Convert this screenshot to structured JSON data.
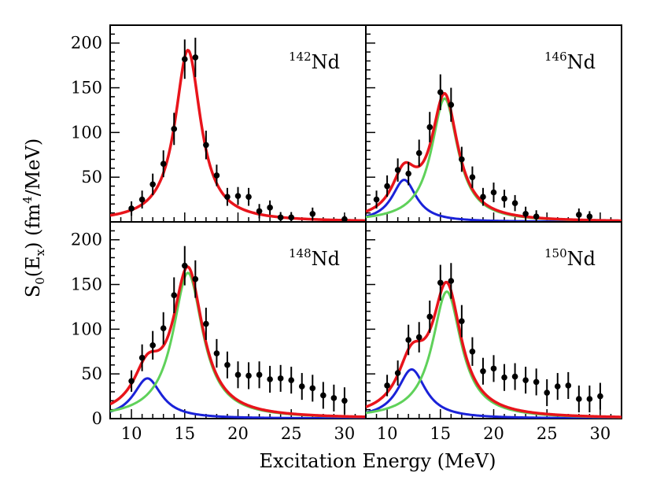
{
  "chart_data": {
    "type": "scatter",
    "xlabel": "Excitation Energy (MeV)",
    "ylabel": "S0(Ex) (fm4/MeV)",
    "ylabel_parts": {
      "s": "S",
      "s_sub": "0",
      "e": "(E",
      "e_sub": "x",
      "unit": ") (fm",
      "unit_sup": "4",
      "unit_end": "/MeV)"
    },
    "xlim": [
      8,
      32
    ],
    "ylim": [
      0,
      220
    ],
    "x_ticks": [
      10,
      15,
      20,
      25,
      30
    ],
    "y_ticks": [
      50,
      100,
      150,
      200
    ],
    "x_tick_labels": [
      "10",
      "15",
      "20",
      "25",
      "30"
    ],
    "y_tick_labels": [
      "0",
      "50",
      "100",
      "150",
      "200"
    ],
    "colors": {
      "total": "#e8141b",
      "low": "#1a22d8",
      "main": "#5fd15a",
      "data": "#000000"
    },
    "panels": [
      {
        "nucleus": "142Nd",
        "mass": "142",
        "element": "Nd",
        "points": [
          {
            "x": 10,
            "y": 15,
            "err": 8
          },
          {
            "x": 11,
            "y": 25,
            "err": 10
          },
          {
            "x": 12,
            "y": 42,
            "err": 12
          },
          {
            "x": 13,
            "y": 65,
            "err": 15
          },
          {
            "x": 14,
            "y": 104,
            "err": 18
          },
          {
            "x": 15,
            "y": 182,
            "err": 22
          },
          {
            "x": 16,
            "y": 184,
            "err": 22
          },
          {
            "x": 17,
            "y": 86,
            "err": 16
          },
          {
            "x": 18,
            "y": 52,
            "err": 12
          },
          {
            "x": 19,
            "y": 28,
            "err": 10
          },
          {
            "x": 20,
            "y": 29,
            "err": 10
          },
          {
            "x": 21,
            "y": 28,
            "err": 10
          },
          {
            "x": 22,
            "y": 12,
            "err": 8
          },
          {
            "x": 23,
            "y": 16,
            "err": 8
          },
          {
            "x": 24,
            "y": 5,
            "err": 6
          },
          {
            "x": 25,
            "y": 5,
            "err": 6
          },
          {
            "x": 27,
            "y": 9,
            "err": 7
          },
          {
            "x": 30,
            "y": 3,
            "err": 4
          }
        ],
        "components": [
          {
            "role": "total",
            "E": 15.3,
            "G": 2.9,
            "peak": 192
          }
        ]
      },
      {
        "nucleus": "146Nd",
        "mass": "146",
        "element": "Nd",
        "points": [
          {
            "x": 9,
            "y": 25,
            "err": 10
          },
          {
            "x": 10,
            "y": 40,
            "err": 12
          },
          {
            "x": 11,
            "y": 58,
            "err": 13
          },
          {
            "x": 12,
            "y": 54,
            "err": 13
          },
          {
            "x": 13,
            "y": 77,
            "err": 15
          },
          {
            "x": 14,
            "y": 106,
            "err": 17
          },
          {
            "x": 15,
            "y": 145,
            "err": 20
          },
          {
            "x": 16,
            "y": 131,
            "err": 19
          },
          {
            "x": 17,
            "y": 70,
            "err": 14
          },
          {
            "x": 18,
            "y": 50,
            "err": 12
          },
          {
            "x": 19,
            "y": 28,
            "err": 10
          },
          {
            "x": 20,
            "y": 33,
            "err": 11
          },
          {
            "x": 21,
            "y": 26,
            "err": 10
          },
          {
            "x": 22,
            "y": 21,
            "err": 9
          },
          {
            "x": 23,
            "y": 9,
            "err": 8
          },
          {
            "x": 24,
            "y": 6,
            "err": 7
          },
          {
            "x": 28,
            "y": 8,
            "err": 7
          },
          {
            "x": 29,
            "y": 6,
            "err": 6
          }
        ],
        "components": [
          {
            "role": "low",
            "E": 11.6,
            "G": 2.8,
            "peak": 47
          },
          {
            "role": "main",
            "E": 15.4,
            "G": 3.0,
            "peak": 138
          }
        ]
      },
      {
        "nucleus": "148Nd",
        "mass": "148",
        "element": "Nd",
        "points": [
          {
            "x": 10,
            "y": 42,
            "err": 12
          },
          {
            "x": 11,
            "y": 68,
            "err": 15
          },
          {
            "x": 12,
            "y": 82,
            "err": 16
          },
          {
            "x": 13,
            "y": 101,
            "err": 18
          },
          {
            "x": 14,
            "y": 138,
            "err": 20
          },
          {
            "x": 15,
            "y": 171,
            "err": 22
          },
          {
            "x": 16,
            "y": 156,
            "err": 21
          },
          {
            "x": 17,
            "y": 106,
            "err": 18
          },
          {
            "x": 18,
            "y": 73,
            "err": 16
          },
          {
            "x": 19,
            "y": 60,
            "err": 15
          },
          {
            "x": 20,
            "y": 49,
            "err": 15
          },
          {
            "x": 21,
            "y": 48,
            "err": 15
          },
          {
            "x": 22,
            "y": 49,
            "err": 15
          },
          {
            "x": 23,
            "y": 44,
            "err": 15
          },
          {
            "x": 24,
            "y": 45,
            "err": 15
          },
          {
            "x": 25,
            "y": 43,
            "err": 15
          },
          {
            "x": 26,
            "y": 36,
            "err": 15
          },
          {
            "x": 27,
            "y": 34,
            "err": 15
          },
          {
            "x": 28,
            "y": 26,
            "err": 15
          },
          {
            "x": 29,
            "y": 23,
            "err": 15
          },
          {
            "x": 30,
            "y": 20,
            "err": 15
          }
        ],
        "components": [
          {
            "role": "low",
            "E": 11.5,
            "G": 3.2,
            "peak": 45
          },
          {
            "role": "main",
            "E": 15.3,
            "G": 3.4,
            "peak": 163
          }
        ]
      },
      {
        "nucleus": "150Nd",
        "mass": "150",
        "element": "Nd",
        "points": [
          {
            "x": 10,
            "y": 37,
            "err": 12
          },
          {
            "x": 11,
            "y": 51,
            "err": 14
          },
          {
            "x": 12,
            "y": 88,
            "err": 17
          },
          {
            "x": 13,
            "y": 91,
            "err": 17
          },
          {
            "x": 14,
            "y": 114,
            "err": 18
          },
          {
            "x": 15,
            "y": 152,
            "err": 20
          },
          {
            "x": 16,
            "y": 154,
            "err": 20
          },
          {
            "x": 17,
            "y": 109,
            "err": 18
          },
          {
            "x": 18,
            "y": 75,
            "err": 16
          },
          {
            "x": 19,
            "y": 53,
            "err": 15
          },
          {
            "x": 20,
            "y": 56,
            "err": 15
          },
          {
            "x": 21,
            "y": 46,
            "err": 15
          },
          {
            "x": 22,
            "y": 47,
            "err": 15
          },
          {
            "x": 23,
            "y": 43,
            "err": 15
          },
          {
            "x": 24,
            "y": 41,
            "err": 15
          },
          {
            "x": 25,
            "y": 29,
            "err": 15
          },
          {
            "x": 26,
            "y": 36,
            "err": 15
          },
          {
            "x": 27,
            "y": 37,
            "err": 15
          },
          {
            "x": 28,
            "y": 22,
            "err": 15
          },
          {
            "x": 29,
            "y": 22,
            "err": 15
          },
          {
            "x": 30,
            "y": 25,
            "err": 15
          }
        ],
        "components": [
          {
            "role": "low",
            "E": 12.3,
            "G": 3.2,
            "peak": 55
          },
          {
            "role": "main",
            "E": 15.6,
            "G": 3.3,
            "peak": 142
          }
        ]
      }
    ]
  }
}
